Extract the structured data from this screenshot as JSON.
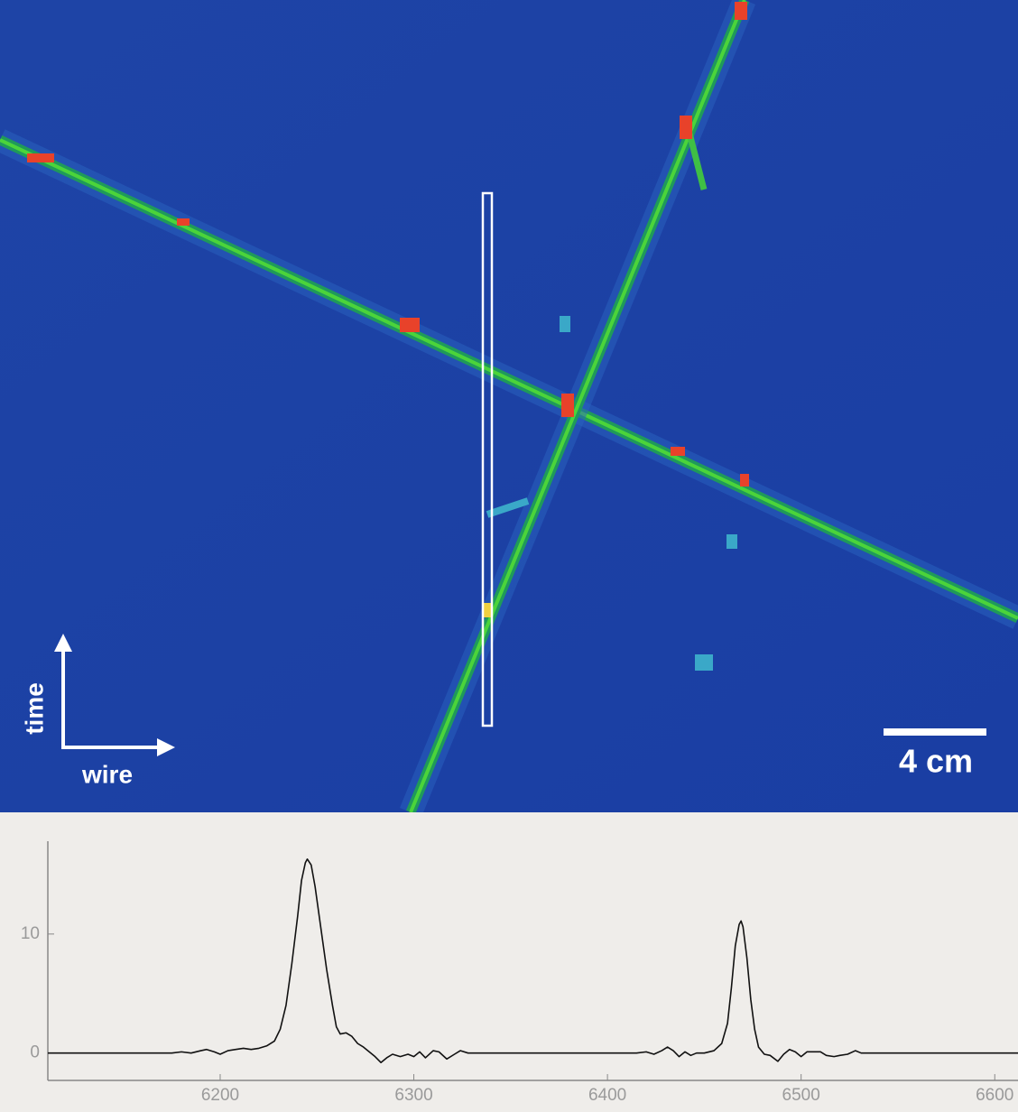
{
  "event_display": {
    "time_label": "time",
    "wire_label": "wire",
    "scale_label": "4 cm"
  },
  "chart_data": {
    "type": "line",
    "color": "#111111",
    "x": [
      6111,
      6175,
      6180,
      6185,
      6190,
      6193,
      6197,
      6200,
      6204,
      6208,
      6212,
      6216,
      6220,
      6224,
      6228,
      6231,
      6234,
      6237,
      6240,
      6242,
      6244,
      6245,
      6247,
      6249,
      6252,
      6255,
      6258,
      6260,
      6262,
      6265,
      6268,
      6271,
      6274,
      6277,
      6280,
      6283,
      6286,
      6289,
      6293,
      6297,
      6300,
      6303,
      6306,
      6310,
      6313,
      6317,
      6321,
      6324,
      6328,
      6415,
      6420,
      6424,
      6428,
      6431,
      6434,
      6437,
      6440,
      6443,
      6446,
      6450,
      6455,
      6459,
      6462,
      6464,
      6466,
      6468,
      6469,
      6470,
      6472,
      6474,
      6476,
      6478,
      6481,
      6484,
      6488,
      6491,
      6494,
      6497,
      6500,
      6503,
      6507,
      6510,
      6513,
      6517,
      6520,
      6524,
      6528,
      6531,
      6612
    ],
    "values": [
      0,
      0,
      0.1,
      0,
      0.2,
      0.3,
      0.1,
      -0.1,
      0.2,
      0.3,
      0.4,
      0.3,
      0.4,
      0.6,
      1.0,
      2.0,
      4.0,
      7.5,
      11.5,
      14.5,
      16.0,
      16.3,
      15.8,
      14.0,
      10.5,
      7.0,
      4.0,
      2.2,
      1.6,
      1.7,
      1.4,
      0.8,
      0.5,
      0.1,
      -0.3,
      -0.8,
      -0.4,
      -0.1,
      -0.3,
      -0.1,
      -0.3,
      0.1,
      -0.4,
      0.2,
      0.1,
      -0.5,
      -0.1,
      0.2,
      0,
      0,
      0.1,
      -0.1,
      0.2,
      0.5,
      0.2,
      -0.3,
      0.1,
      -0.2,
      0,
      0,
      0.2,
      0.8,
      2.5,
      5.5,
      9.0,
      10.8,
      11.1,
      10.6,
      8.0,
      4.5,
      2.0,
      0.5,
      -0.1,
      -0.2,
      -0.7,
      -0.1,
      0.3,
      0.1,
      -0.3,
      0.1,
      0.1,
      0.1,
      -0.2,
      -0.3,
      -0.2,
      -0.1,
      0.2,
      0,
      0
    ],
    "xlim": [
      6111,
      6612
    ],
    "ylim": [
      -2.3,
      17.8
    ],
    "xticks": [
      6200,
      6300,
      6400,
      6500,
      6600
    ],
    "yticks": [
      0,
      10
    ]
  }
}
